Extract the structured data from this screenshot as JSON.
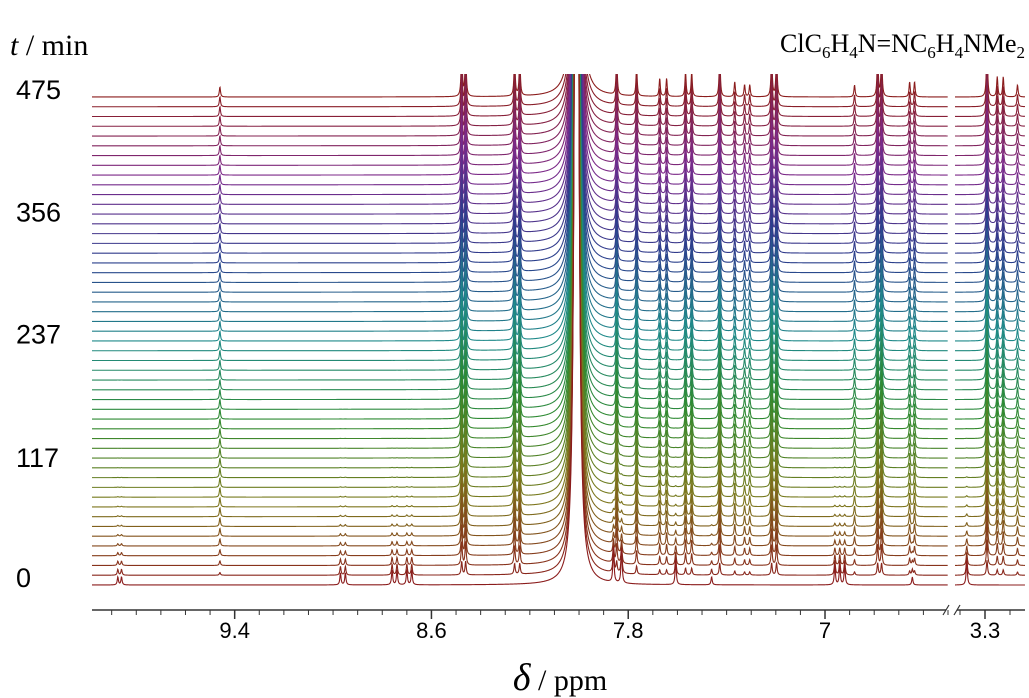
{
  "chart_data": {
    "type": "stacked-spectra",
    "title": "ClC6H4N=NC6H4NMe2",
    "ylabel": "t / min",
    "xlabel": "δ / ppm",
    "ylim": [
      0,
      475
    ],
    "yticks": [
      0,
      117,
      237,
      356,
      475
    ],
    "segments": [
      {
        "xlim": [
          9.98,
          6.5
        ],
        "xticks": [
          9.4,
          8.6,
          7.8,
          7.0
        ]
      },
      {
        "xlim": [
          3.42,
          3.14
        ],
        "xticks": [
          3.3
        ]
      }
    ],
    "xminor": 0.1,
    "times": [
      0,
      9.5,
      19,
      28.5,
      38,
      47.5,
      57,
      66.5,
      76,
      85.5,
      95,
      104.5,
      114,
      123.5,
      133,
      142.5,
      152,
      161.5,
      171,
      180.5,
      190,
      199.5,
      209,
      218.5,
      228,
      237.5,
      247,
      256.5,
      266,
      275.5,
      285,
      294.5,
      304,
      313.5,
      323,
      332.5,
      342,
      351.5,
      361,
      370.5,
      380,
      389.5,
      399,
      408.5,
      418,
      427.5,
      437,
      446.5,
      456,
      465.5,
      475
    ],
    "colors": [
      "#8b1c1c",
      "#7d7a1e",
      "#2f8a2f",
      "#1f8a8a",
      "#2b3d8c",
      "#7b2a8c",
      "#8b1c1c"
    ],
    "peaks": [
      {
        "ppm": 9.875,
        "start": 8,
        "end": 0
      },
      {
        "ppm": 9.86,
        "start": 8,
        "end": 0
      },
      {
        "ppm": 9.46,
        "start": 0,
        "end": 10
      },
      {
        "ppm": 8.97,
        "start": 12,
        "end": 0
      },
      {
        "ppm": 8.95,
        "start": 12,
        "end": 0
      },
      {
        "ppm": 8.76,
        "start": 15,
        "end": 0
      },
      {
        "ppm": 8.74,
        "start": 15,
        "end": 0
      },
      {
        "ppm": 8.7,
        "start": 15,
        "end": 0
      },
      {
        "ppm": 8.68,
        "start": 15,
        "end": 0
      },
      {
        "ppm": 8.477,
        "start": 0,
        "end": 50
      },
      {
        "ppm": 8.461,
        "start": 0,
        "end": 50
      },
      {
        "ppm": 8.262,
        "start": 0,
        "end": 40
      },
      {
        "ppm": 8.241,
        "start": 0,
        "end": 40
      },
      {
        "ppm": 8.01,
        "start": 1800,
        "end": 1800
      },
      {
        "ppm": 7.86,
        "start": 35,
        "end": 0
      },
      {
        "ppm": 7.847,
        "start": 0,
        "end": 40
      },
      {
        "ppm": 7.827,
        "start": 35,
        "end": 0
      },
      {
        "ppm": 7.766,
        "start": 0,
        "end": 30
      },
      {
        "ppm": 7.672,
        "start": 0,
        "end": 18
      },
      {
        "ppm": 7.644,
        "start": 0,
        "end": 18
      },
      {
        "ppm": 7.607,
        "start": 25,
        "end": 0
      },
      {
        "ppm": 7.567,
        "start": 0,
        "end": 25
      },
      {
        "ppm": 7.542,
        "start": 0,
        "end": 25
      },
      {
        "ppm": 7.461,
        "start": 8,
        "end": 0
      },
      {
        "ppm": 7.428,
        "start": 0,
        "end": 45
      },
      {
        "ppm": 7.367,
        "start": 0,
        "end": 15
      },
      {
        "ppm": 7.327,
        "start": 0,
        "end": 12
      },
      {
        "ppm": 7.306,
        "start": 0,
        "end": 12
      },
      {
        "ppm": 7.217,
        "start": 0,
        "end": 45
      },
      {
        "ppm": 7.197,
        "start": 0,
        "end": 45
      },
      {
        "ppm": 6.96,
        "start": 20,
        "end": 0
      },
      {
        "ppm": 6.94,
        "start": 20,
        "end": 0
      },
      {
        "ppm": 6.92,
        "start": 20,
        "end": 0
      },
      {
        "ppm": 6.88,
        "start": 0,
        "end": 12
      },
      {
        "ppm": 6.786,
        "start": 0,
        "end": 45
      },
      {
        "ppm": 6.77,
        "start": 0,
        "end": 45
      },
      {
        "ppm": 6.656,
        "start": 0,
        "end": 15
      },
      {
        "ppm": 6.645,
        "start": 8,
        "end": 0
      },
      {
        "ppm": 6.636,
        "start": 0,
        "end": 15
      },
      {
        "ppm": 3.373,
        "start": 25,
        "end": 0
      },
      {
        "ppm": 3.292,
        "start": 0,
        "end": 55
      },
      {
        "ppm": 3.251,
        "start": 0,
        "end": 20
      },
      {
        "ppm": 3.227,
        "start": 0,
        "end": 20
      },
      {
        "ppm": 3.17,
        "start": 0,
        "end": 12
      }
    ]
  }
}
